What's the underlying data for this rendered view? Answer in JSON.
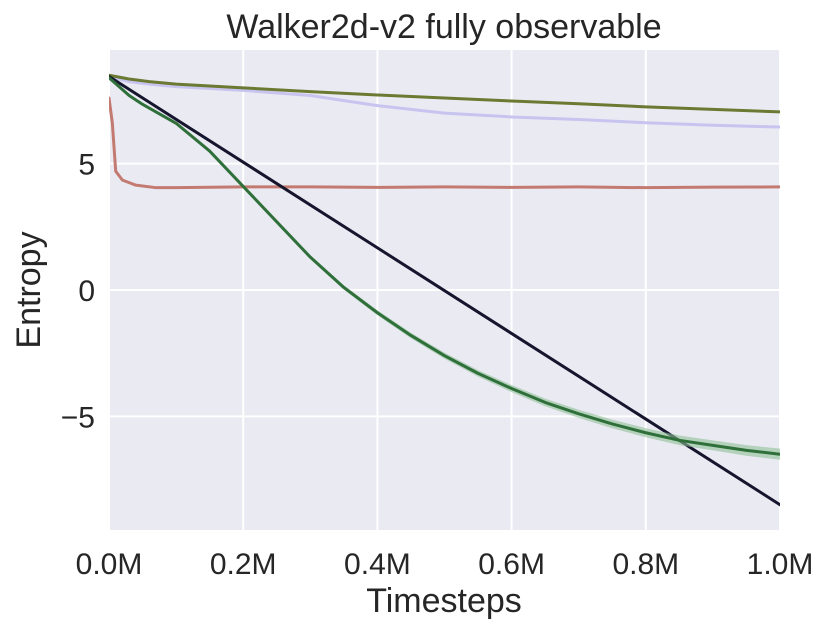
{
  "chart_data": {
    "type": "line",
    "title": "Walker2d-v2 fully observable",
    "xlabel": "Timesteps",
    "ylabel": "Entropy",
    "xlim": [
      0,
      1000000
    ],
    "ylim": [
      -9.5,
      9.5
    ],
    "x_ticks": [
      {
        "value": 0,
        "label": "0.0M"
      },
      {
        "value": 200000,
        "label": "0.2M"
      },
      {
        "value": 400000,
        "label": "0.4M"
      },
      {
        "value": 600000,
        "label": "0.6M"
      },
      {
        "value": 800000,
        "label": "0.8M"
      },
      {
        "value": 1000000,
        "label": "1.0M"
      }
    ],
    "y_ticks": [
      {
        "value": 5,
        "label": "5"
      },
      {
        "value": 0,
        "label": "0"
      },
      {
        "value": -5,
        "label": "−5"
      }
    ],
    "grid": true,
    "background_color": "#eaeaf2",
    "grid_color": "#ffffff",
    "series": [
      {
        "color": "#c37a70",
        "x": [
          0,
          5000,
          10000,
          20000,
          40000,
          70000,
          100000,
          200000,
          300000,
          400000,
          500000,
          600000,
          700000,
          800000,
          900000,
          1000000
        ],
        "y": [
          7.6,
          6.6,
          4.7,
          4.35,
          4.15,
          4.05,
          4.05,
          4.08,
          4.08,
          4.06,
          4.08,
          4.06,
          4.08,
          4.05,
          4.07,
          4.08
        ]
      },
      {
        "color": "#c8c4f0",
        "x": [
          0,
          30000,
          60000,
          100000,
          200000,
          300000,
          400000,
          500000,
          600000,
          700000,
          800000,
          900000,
          1000000
        ],
        "y": [
          8.45,
          8.25,
          8.15,
          8.05,
          7.9,
          7.7,
          7.3,
          7.0,
          6.85,
          6.75,
          6.62,
          6.52,
          6.45
        ]
      },
      {
        "color": "#6b7a32",
        "x": [
          0,
          30000,
          60000,
          100000,
          200000,
          300000,
          400000,
          500000,
          600000,
          700000,
          800000,
          900000,
          1000000
        ],
        "y": [
          8.5,
          8.35,
          8.25,
          8.15,
          8.0,
          7.85,
          7.72,
          7.6,
          7.48,
          7.37,
          7.25,
          7.15,
          7.05
        ]
      },
      {
        "color": "#15152e",
        "x": [
          0,
          1000000
        ],
        "y": [
          8.45,
          -8.5
        ]
      },
      {
        "color": "#2f6f3a",
        "band_color": "#8fbf98",
        "x": [
          0,
          30000,
          50000,
          100000,
          150000,
          200000,
          250000,
          300000,
          350000,
          400000,
          450000,
          500000,
          550000,
          600000,
          650000,
          700000,
          750000,
          800000,
          850000,
          900000,
          950000,
          1000000
        ],
        "y": [
          8.4,
          7.7,
          7.35,
          6.6,
          5.5,
          4.1,
          2.7,
          1.3,
          0.1,
          -0.9,
          -1.8,
          -2.6,
          -3.3,
          -3.9,
          -4.45,
          -4.9,
          -5.3,
          -5.65,
          -5.95,
          -6.15,
          -6.35,
          -6.5
        ],
        "band": [
          0,
          0.03,
          0.03,
          0.04,
          0.05,
          0.06,
          0.07,
          0.08,
          0.09,
          0.1,
          0.11,
          0.12,
          0.13,
          0.14,
          0.15,
          0.16,
          0.17,
          0.18,
          0.19,
          0.2,
          0.21,
          0.22
        ]
      }
    ]
  }
}
